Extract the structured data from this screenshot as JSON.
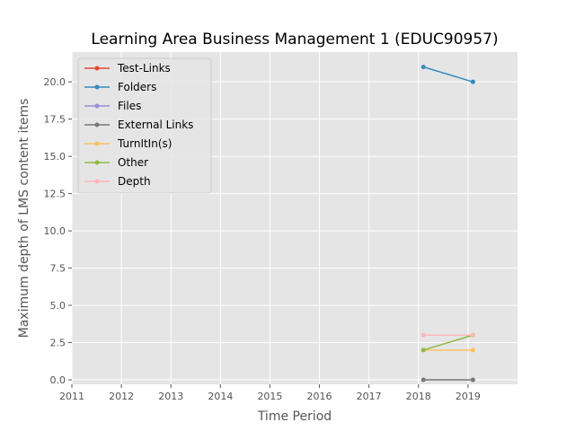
{
  "chart_data": {
    "type": "line",
    "title": "Learning Area Business Management 1 (EDUC90957)",
    "xlabel": "Time Period",
    "ylabel": "Maximum depth of LMS content items",
    "xlim": [
      2011,
      2020
    ],
    "ylim": [
      -0.3,
      22.0
    ],
    "xticks": [
      2011,
      2012,
      2013,
      2014,
      2015,
      2016,
      2017,
      2018,
      2019
    ],
    "yticks": [
      0.0,
      2.5,
      5.0,
      7.5,
      10.0,
      12.5,
      15.0,
      17.5,
      20.0
    ],
    "ytick_labels": [
      "0.0",
      "2.5",
      "5.0",
      "7.5",
      "10.0",
      "12.5",
      "15.0",
      "17.5",
      "20.0"
    ],
    "x": [
      2018.1,
      2019.1
    ],
    "grid": true,
    "legend_position": "top-left",
    "series": [
      {
        "name": "Test-Links",
        "color": "#E24A33",
        "values": [
          null,
          null
        ]
      },
      {
        "name": "Folders",
        "color": "#348ABD",
        "values": [
          21,
          20
        ]
      },
      {
        "name": "Files",
        "color": "#988ED5",
        "values": [
          null,
          null
        ]
      },
      {
        "name": "External Links",
        "color": "#777777",
        "values": [
          0,
          0
        ]
      },
      {
        "name": "TurnItIn(s)",
        "color": "#FBC15E",
        "values": [
          2,
          2
        ]
      },
      {
        "name": "Other",
        "color": "#8EBA42",
        "values": [
          2,
          3
        ]
      },
      {
        "name": "Depth",
        "color": "#FFB5B8",
        "values": [
          3,
          3
        ]
      }
    ]
  }
}
